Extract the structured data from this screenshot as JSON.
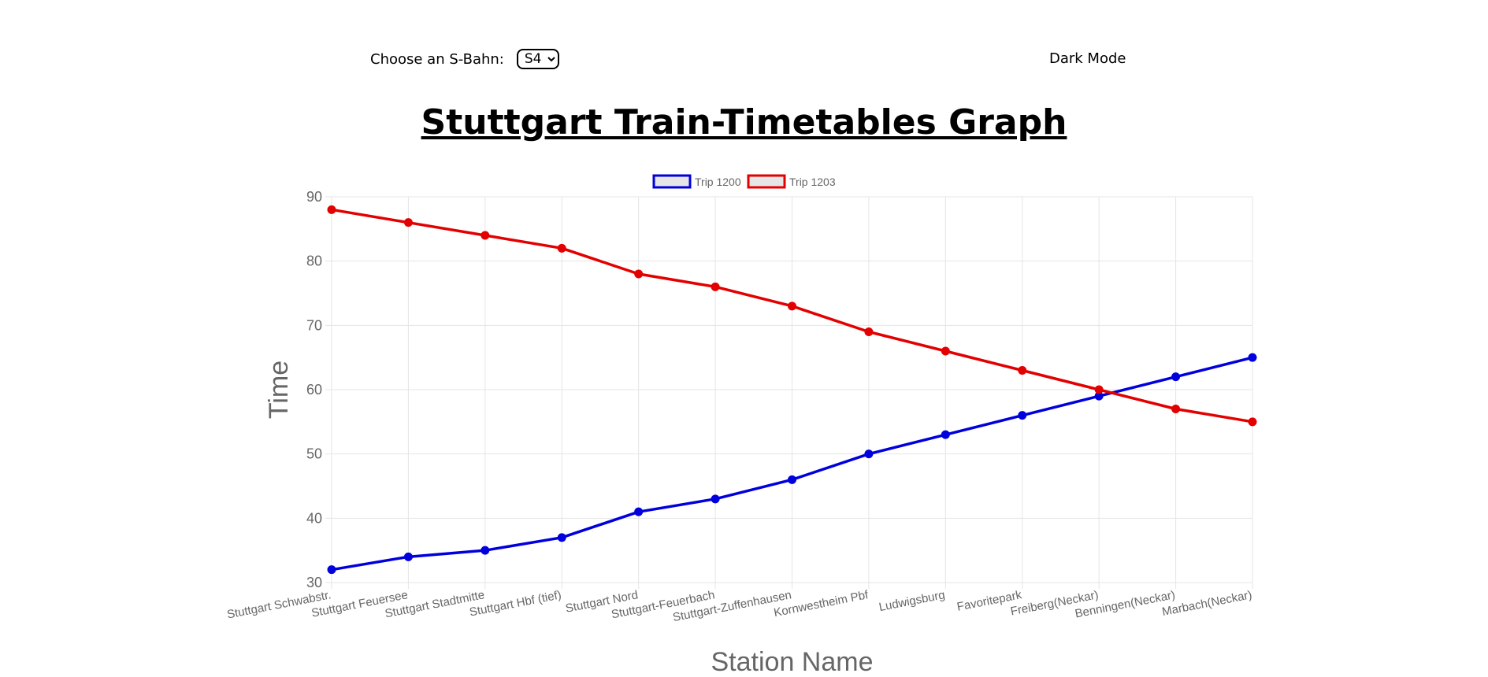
{
  "controls": {
    "sbahn_label": "Choose an S-Bahn:",
    "sbahn_selected": "S4",
    "dark_mode_label": "Dark Mode"
  },
  "page": {
    "title": "Stuttgart Train-Timetables Graph"
  },
  "colors": {
    "trip_1200": "#0000dd",
    "trip_1203": "#e30000",
    "grid": "#e5e5e5",
    "axis_text": "#666666"
  },
  "chart_data": {
    "type": "line",
    "xlabel": "Station Name",
    "ylabel": "Time",
    "ylim": [
      30,
      90
    ],
    "yticks": [
      30,
      40,
      50,
      60,
      70,
      80,
      90
    ],
    "grid": true,
    "legend_position": "top-center",
    "categories": [
      "Stuttgart Schwabstr.",
      "Stuttgart Feuersee",
      "Stuttgart Stadtmitte",
      "Stuttgart Hbf (tief)",
      "Stuttgart Nord",
      "Stuttgart-Feuerbach",
      "Stuttgart-Zuffenhausen",
      "Kornwestheim Pbf",
      "Ludwigsburg",
      "Favoritepark",
      "Freiberg(Neckar)",
      "Benningen(Neckar)",
      "Marbach(Neckar)"
    ],
    "series": [
      {
        "name": "Trip 1200",
        "color": "#0000dd",
        "values": [
          32,
          34,
          35,
          37,
          41,
          43,
          46,
          50,
          53,
          56,
          59,
          62,
          65
        ]
      },
      {
        "name": "Trip 1203",
        "color": "#e30000",
        "values": [
          88,
          86,
          84,
          82,
          78,
          76,
          73,
          69,
          66,
          63,
          60,
          57,
          55
        ]
      }
    ]
  }
}
